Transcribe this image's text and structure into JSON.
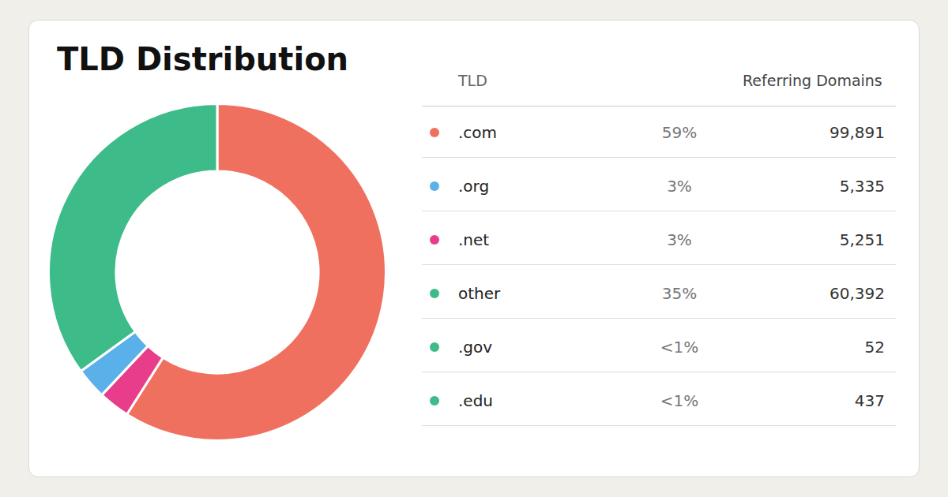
{
  "chart_data": {
    "type": "pie",
    "title": "TLD Distribution",
    "values": [
      59,
      3,
      3,
      35
    ],
    "colors": [
      "#f07060",
      "#e83d8a",
      "#5ab0e8",
      "#3dbc8a"
    ],
    "table": {
      "columns": [
        "TLD",
        "Referring Domains"
      ],
      "rows": [
        {
          "color": "#f07060",
          "tld": ".com",
          "share": "59%",
          "domains": "99,891"
        },
        {
          "color": "#5ab0e8",
          "tld": ".org",
          "share": "3%",
          "domains": "5,335"
        },
        {
          "color": "#e83d8a",
          "tld": ".net",
          "share": "3%",
          "domains": "5,251"
        },
        {
          "color": "#3dbc8a",
          "tld": "other",
          "share": "35%",
          "domains": "60,392"
        },
        {
          "color": "#3dbc8a",
          "tld": ".gov",
          "share": "<1%",
          "domains": "52"
        },
        {
          "color": "#3dbc8a",
          "tld": ".edu",
          "share": "<1%",
          "domains": "437"
        }
      ]
    }
  }
}
